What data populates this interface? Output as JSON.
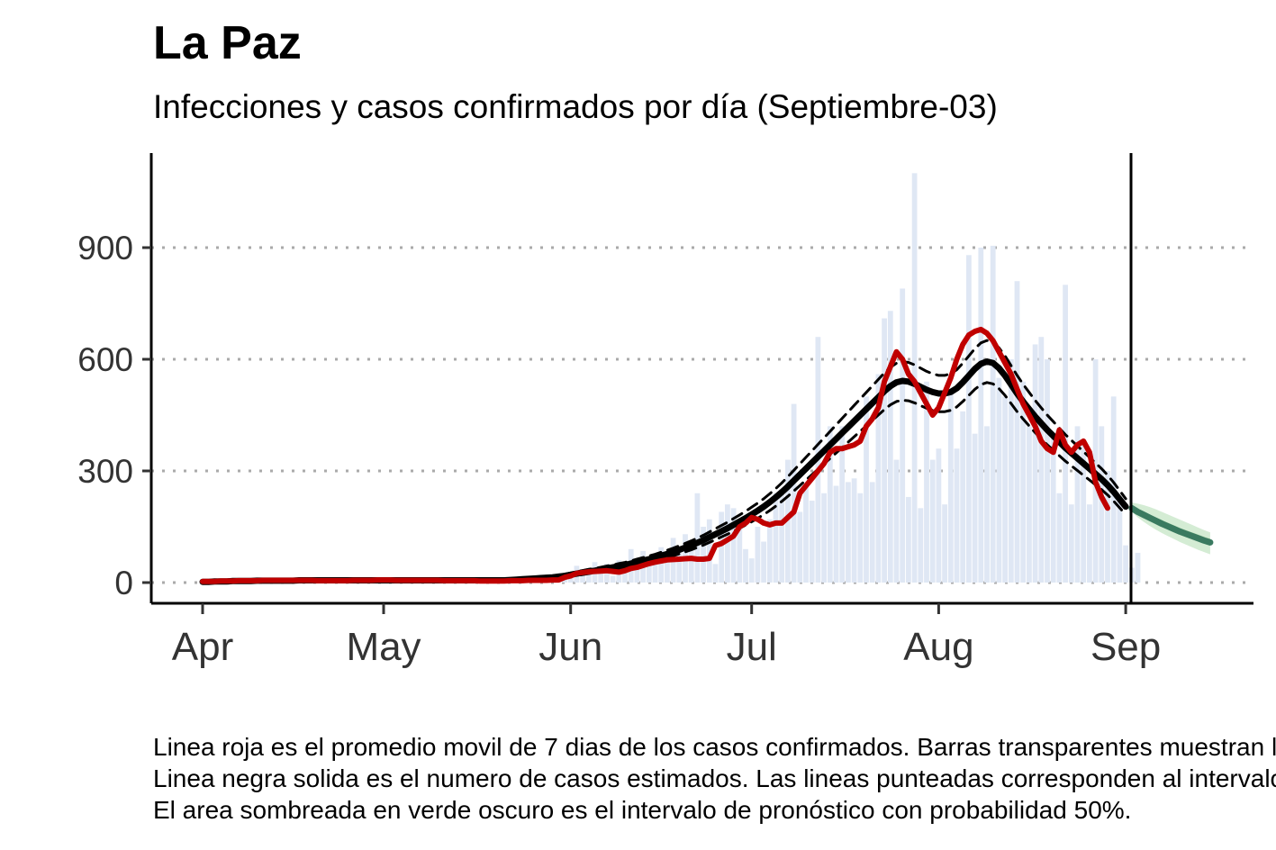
{
  "chart_data": {
    "type": "line",
    "title": "La Paz",
    "subtitle": "Infecciones y casos confirmados por día (Septiembre-03)",
    "xlabel": "",
    "ylabel": "",
    "x_ticks": [
      "Apr",
      "May",
      "Jun",
      "Jul",
      "Aug",
      "Sep"
    ],
    "x_tick_days": [
      0,
      30,
      61,
      91,
      122,
      153
    ],
    "y_ticks": [
      0,
      300,
      600,
      900
    ],
    "ylim": [
      -50,
      1150
    ],
    "xlim": [
      -8,
      175
    ],
    "forecast_start_day": 154.5,
    "grid": "horizontal dotted",
    "colors": {
      "bars": "#dfe7f4",
      "reported_avg": "#c00000",
      "estimated": "#000000",
      "forecast": "#3a7a60",
      "forecast_inner": "#a8d3a8",
      "forecast_outer": "#d4ecd4",
      "gridline": "#aaaaaa"
    },
    "bars_daily_cases": {
      "start_day": 0,
      "values": [
        1,
        2,
        2,
        3,
        3,
        3,
        4,
        4,
        5,
        5,
        5,
        6,
        6,
        6,
        7,
        7,
        7,
        6,
        6,
        7,
        6,
        5,
        5,
        5,
        6,
        6,
        6,
        7,
        7,
        8,
        8,
        9,
        9,
        8,
        8,
        8,
        7,
        8,
        8,
        7,
        7,
        7,
        7,
        7,
        7,
        6,
        6,
        6,
        5,
        5,
        5,
        6,
        6,
        6,
        7,
        7,
        8,
        8,
        9,
        9,
        10,
        25,
        45,
        30,
        28,
        55,
        40,
        50,
        18,
        60,
        35,
        90,
        40,
        85,
        70,
        55,
        95,
        70,
        120,
        95,
        130,
        110,
        240,
        150,
        170,
        50,
        190,
        210,
        200,
        160,
        90,
        65,
        150,
        110,
        170,
        240,
        250,
        330,
        480,
        190,
        260,
        220,
        660,
        240,
        420,
        260,
        420,
        270,
        280,
        240,
        500,
        270,
        560,
        710,
        730,
        330,
        790,
        230,
        1100,
        200,
        540,
        330,
        360,
        210,
        520,
        360,
        460,
        880,
        400,
        900,
        420,
        905,
        550,
        500,
        600,
        810,
        540,
        420,
        640,
        660,
        600,
        400,
        240,
        800,
        210,
        420,
        380,
        210,
        600,
        420,
        300,
        500,
        220,
        100,
        40,
        80
      ]
    },
    "series": [
      {
        "name": "",
        "kind": "reported 7-day average",
        "start_day": 0,
        "values": [
          3,
          3,
          3,
          4,
          4,
          4,
          5,
          5,
          5,
          5,
          6,
          6,
          6,
          6,
          6,
          6,
          6,
          6,
          6,
          5,
          5,
          5,
          5,
          5,
          5,
          6,
          6,
          6,
          6,
          7,
          7,
          7,
          6,
          6,
          6,
          6,
          6,
          6,
          6,
          6,
          5,
          5,
          5,
          5,
          5,
          5,
          4,
          4,
          4,
          4,
          4,
          5,
          5,
          5,
          6,
          6,
          6,
          6,
          7,
          7,
          14,
          18,
          25,
          27,
          29,
          30,
          31,
          32,
          30,
          28,
          32,
          38,
          41,
          46,
          51,
          55,
          58,
          61,
          62,
          63,
          64,
          65,
          63,
          63,
          65,
          100,
          105,
          115,
          125,
          150,
          160,
          175,
          170,
          160,
          155,
          160,
          160,
          175,
          190,
          240,
          260,
          280,
          300,
          320,
          350,
          360,
          360,
          365,
          370,
          380,
          420,
          440,
          470,
          540,
          580,
          620,
          600,
          560,
          540,
          510,
          480,
          450,
          470,
          510,
          550,
          600,
          640,
          665,
          675,
          680,
          670,
          650,
          620,
          590,
          560,
          520,
          480,
          450,
          420,
          380,
          360,
          350,
          410,
          370,
          350,
          370,
          380,
          350,
          270,
          230,
          200
        ]
      },
      {
        "name": "",
        "kind": "estimated",
        "start_day": 0,
        "values": [
          2,
          2,
          3,
          3,
          3,
          4,
          4,
          4,
          4,
          5,
          5,
          5,
          5,
          5,
          5,
          5,
          6,
          6,
          6,
          6,
          6,
          6,
          6,
          6,
          6,
          6,
          6,
          6,
          6,
          6,
          6,
          6,
          6,
          6,
          6,
          6,
          6,
          6,
          6,
          6,
          6,
          6,
          6,
          6,
          6,
          6,
          6,
          6,
          6,
          6,
          6,
          7,
          8,
          9,
          10,
          11,
          12,
          13,
          14,
          16,
          18,
          21,
          24,
          27,
          30,
          32,
          35,
          38,
          41,
          44,
          47,
          51,
          55,
          59,
          63,
          67,
          72,
          77,
          82,
          88,
          94,
          100,
          107,
          114,
          122,
          130,
          138,
          146,
          155,
          164,
          173,
          183,
          193,
          204,
          216,
          229,
          243,
          258,
          274,
          290,
          306,
          322,
          338,
          354,
          370,
          386,
          402,
          418,
          434,
          450,
          466,
          482,
          498,
          514,
          528,
          538,
          542,
          540,
          534,
          526,
          518,
          512,
          508,
          508,
          512,
          522,
          538,
          556,
          574,
          588,
          594,
          590,
          576,
          556,
          532,
          508,
          486,
          466,
          446,
          428,
          410,
          394,
          378,
          362,
          348,
          334,
          320,
          306,
          292,
          278,
          262,
          244,
          224,
          204
        ]
      },
      {
        "name": "",
        "kind": "forecast",
        "start_day": 154,
        "values": [
          200,
          190,
          182,
          174,
          166,
          158,
          151,
          144,
          137,
          131,
          125,
          119,
          113,
          108
        ],
        "band50_lower": [
          196,
          184,
          175,
          166,
          157,
          149,
          142,
          135,
          128,
          122,
          116,
          110,
          104,
          99
        ],
        "band50_upper": [
          205,
          196,
          189,
          182,
          175,
          168,
          161,
          154,
          147,
          141,
          135,
          129,
          123,
          118
        ],
        "band95_lower": [
          190,
          175,
          163,
          152,
          142,
          133,
          125,
          117,
          109,
          102,
          95,
          88,
          82,
          76
        ],
        "band95_upper": [
          215,
          212,
          208,
          203,
          197,
          190,
          183,
          176,
          169,
          162,
          155,
          148,
          141,
          135
        ]
      }
    ]
  },
  "caption": {
    "lines": [
      "Linea roja es el promedio movil de 7 dias de los casos confirmados. Barras transparentes muestran los casos confirmados.",
      "Linea negra solida es el numero de casos estimados. Las lineas punteadas corresponden al intervalo de confianza.",
      "El area sombreada en verde oscuro es el intervalo de pronóstico con probabilidad 50%."
    ]
  }
}
